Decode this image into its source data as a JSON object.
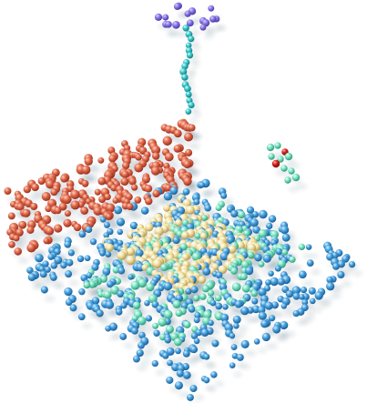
{
  "scene": {
    "background": "#ffffff",
    "style": "3D point cloud rendered as shaded spheres with soft shadows",
    "palette": {
      "purple": "#8b78e6",
      "teal": "#3cc6c9",
      "red_orange": "#e06a4b",
      "sky_blue": "#4aa3df",
      "aqua": "#7fe3c4",
      "cream": "#f4e3a6",
      "red_accent": "#d9201a"
    },
    "clusters": [
      {
        "name": "top-purple-cluster",
        "color": "purple"
      },
      {
        "name": "vertical-teal-column",
        "color": "teal"
      },
      {
        "name": "red-orange-wall",
        "color": "red_orange"
      },
      {
        "name": "blue-base-sheet",
        "color": "sky_blue"
      },
      {
        "name": "aqua-band",
        "color": "aqua"
      },
      {
        "name": "cream-band",
        "color": "cream"
      },
      {
        "name": "small-molecule-cluster",
        "color": "aqua"
      }
    ]
  }
}
